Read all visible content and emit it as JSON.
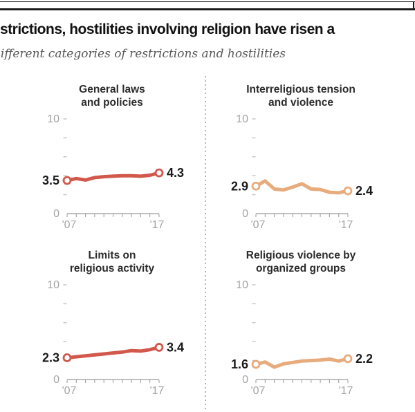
{
  "header": {
    "title": "strictions, hostilities involving religion have risen a",
    "subtitle": "different categories of restrictions and hostilities"
  },
  "colors": {
    "restrictions_red": "#d2584c",
    "hostilities_tan": "#e7ab7c",
    "axis_label_gray": "#a3a3a3",
    "ytick_gray": "#c6c6c6",
    "axis_line_gray": "#999999",
    "value_label_black": "#1a1a1a",
    "marker_fill": "#ffffff"
  },
  "chart_data": [
    {
      "type": "line",
      "title": "General laws and policies",
      "title_lines": [
        "General laws",
        "and policies"
      ],
      "color": "#d2584c",
      "x": [
        2007,
        2008,
        2009,
        2010,
        2011,
        2012,
        2013,
        2014,
        2015,
        2016,
        2017
      ],
      "values": [
        3.5,
        3.7,
        3.55,
        3.8,
        3.9,
        3.95,
        4.0,
        4.0,
        3.95,
        4.05,
        4.3
      ],
      "start_label": "3.5",
      "end_label": "4.3",
      "x_first_label": "'07",
      "x_last_label": "'17",
      "y_top_label": "10",
      "y_zero_label": "0",
      "ylim": [
        0,
        10
      ],
      "yticks": [
        2,
        4,
        6,
        8,
        10
      ],
      "grid": false,
      "legend": "none"
    },
    {
      "type": "line",
      "title": "Interreligious tension and violence",
      "title_lines": [
        "Interreligious tension",
        "and violence"
      ],
      "color": "#e7ab7c",
      "x": [
        2007,
        2008,
        2009,
        2010,
        2011,
        2012,
        2013,
        2014,
        2015,
        2016,
        2017
      ],
      "values": [
        2.9,
        3.45,
        2.6,
        2.5,
        2.8,
        3.15,
        2.6,
        2.55,
        2.25,
        2.2,
        2.4
      ],
      "start_label": "2.9",
      "end_label": "2.4",
      "x_first_label": "'07",
      "x_last_label": "'17",
      "y_top_label": "10",
      "y_zero_label": "0",
      "ylim": [
        0,
        10
      ],
      "yticks": [
        2,
        4,
        6,
        8,
        10
      ],
      "grid": false,
      "legend": "none"
    },
    {
      "type": "line",
      "title": "Limits on religious activity",
      "title_lines": [
        "Limits on",
        "religious activity"
      ],
      "color": "#d2584c",
      "x": [
        2007,
        2008,
        2009,
        2010,
        2011,
        2012,
        2013,
        2014,
        2015,
        2016,
        2017
      ],
      "values": [
        2.3,
        2.4,
        2.5,
        2.6,
        2.7,
        2.8,
        2.9,
        3.05,
        3.0,
        3.15,
        3.4
      ],
      "start_label": "2.3",
      "end_label": "3.4",
      "x_first_label": "'07",
      "x_last_label": "'17",
      "y_top_label": "10",
      "y_zero_label": "0",
      "ylim": [
        0,
        10
      ],
      "yticks": [
        2,
        4,
        6,
        8,
        10
      ],
      "grid": false,
      "legend": "none"
    },
    {
      "type": "line",
      "title": "Religious violence by organized groups",
      "title_lines": [
        "Religious violence by",
        "organized groups"
      ],
      "color": "#e7ab7c",
      "x": [
        2007,
        2008,
        2009,
        2010,
        2011,
        2012,
        2013,
        2014,
        2015,
        2016,
        2017
      ],
      "values": [
        1.6,
        1.85,
        1.3,
        1.65,
        1.8,
        1.95,
        2.0,
        2.05,
        2.15,
        1.95,
        2.2
      ],
      "start_label": "1.6",
      "end_label": "2.2",
      "x_first_label": "'07",
      "x_last_label": "'17",
      "y_top_label": "10",
      "y_zero_label": "0",
      "ylim": [
        0,
        10
      ],
      "yticks": [
        2,
        4,
        6,
        8,
        10
      ],
      "grid": false,
      "legend": "none"
    }
  ]
}
